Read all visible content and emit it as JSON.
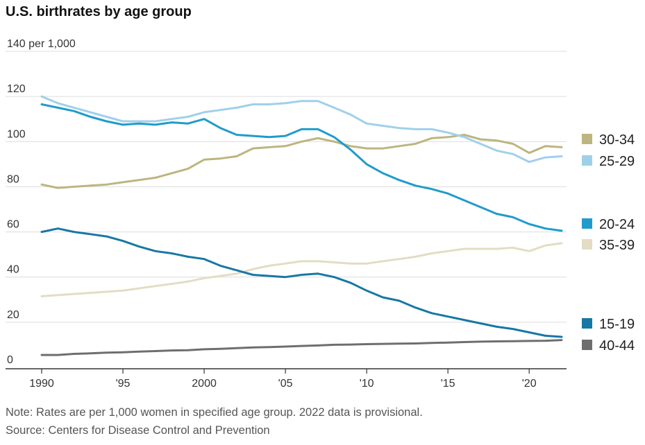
{
  "title": "U.S. birthrates by age group",
  "note": "Note: Rates are per 1,000 women in specified age group. 2022 data is provisional.",
  "source": "Source: Centers for Disease Control and Prevention",
  "chart_data": {
    "type": "line",
    "title": "U.S. birthrates by age group",
    "ylabel": "",
    "ylim": [
      0,
      140
    ],
    "xlim": [
      1990,
      2022
    ],
    "y_ticks": [
      0,
      20,
      40,
      60,
      80,
      100,
      120,
      140
    ],
    "y_tick_labels": [
      "0",
      "20",
      "40",
      "60",
      "80",
      "100",
      "120",
      "140 per 1,000"
    ],
    "x_ticks": [
      1990,
      1995,
      2000,
      2005,
      2010,
      2015,
      2020
    ],
    "x_tick_labels": [
      "1990",
      "'95",
      "2000",
      "'05",
      "'10",
      "'15",
      "'20"
    ],
    "grid": true,
    "legend_placement": "right, at line ends",
    "x": [
      1990,
      1991,
      1992,
      1993,
      1994,
      1995,
      1996,
      1997,
      1998,
      1999,
      2000,
      2001,
      2002,
      2003,
      2004,
      2005,
      2006,
      2007,
      2008,
      2009,
      2010,
      2011,
      2012,
      2013,
      2014,
      2015,
      2016,
      2017,
      2018,
      2019,
      2020,
      2021,
      2022
    ],
    "series": [
      {
        "name": "30-34",
        "color": "#bdb57e",
        "values": [
          81,
          79.5,
          80,
          80.5,
          81,
          82,
          83,
          84,
          86,
          88,
          92,
          92.5,
          93.5,
          97,
          97.5,
          98,
          100,
          101.5,
          100,
          98,
          97,
          97,
          98,
          99,
          101.5,
          102,
          103,
          101,
          100.5,
          99,
          95,
          98,
          97.5
        ]
      },
      {
        "name": "25-29",
        "color": "#9fd0ea",
        "values": [
          120,
          117,
          115,
          113,
          111,
          109,
          109,
          109,
          110,
          111,
          113,
          114,
          115,
          116.5,
          116.5,
          117,
          118,
          118,
          115,
          112,
          108,
          107,
          106,
          105.5,
          105.5,
          104,
          102,
          99,
          96,
          94.5,
          91,
          93,
          93.5
        ]
      },
      {
        "name": "20-24",
        "color": "#1f9bcc",
        "values": [
          116.5,
          115,
          113.5,
          111,
          109,
          107.5,
          108,
          107.5,
          108.5,
          108,
          110,
          106,
          103,
          102.5,
          102,
          102.5,
          105.5,
          105.5,
          102,
          96.5,
          90,
          86,
          83,
          80.5,
          79,
          77,
          74,
          71,
          68,
          66.5,
          63.5,
          61.5,
          60.5
        ]
      },
      {
        "name": "35-39",
        "color": "#e2ddc3",
        "values": [
          31.5,
          32,
          32.5,
          33,
          33.5,
          34,
          35,
          36,
          37,
          38,
          39.5,
          40.5,
          41.5,
          43.5,
          45,
          46,
          47,
          47,
          46.5,
          46,
          46,
          47,
          48,
          49,
          50.5,
          51.5,
          52.5,
          52.5,
          52.5,
          53,
          51.5,
          54,
          55
        ]
      },
      {
        "name": "15-19",
        "color": "#1777a5",
        "values": [
          60,
          61.5,
          60,
          59,
          58,
          56,
          53.5,
          51.5,
          50.5,
          49,
          48,
          45,
          43,
          41,
          40.5,
          40,
          41,
          41.5,
          40,
          37.5,
          34,
          31,
          29.5,
          26.5,
          24,
          22.5,
          21,
          19.5,
          18,
          17,
          15.5,
          14,
          13.5
        ]
      },
      {
        "name": "40-44",
        "color": "#6e6e6e",
        "values": [
          5.5,
          5.5,
          6,
          6.2,
          6.5,
          6.7,
          7,
          7.2,
          7.5,
          7.6,
          8,
          8.2,
          8.5,
          8.8,
          9,
          9.2,
          9.5,
          9.7,
          10,
          10.1,
          10.3,
          10.4,
          10.5,
          10.6,
          10.8,
          11,
          11.2,
          11.4,
          11.5,
          11.6,
          11.7,
          11.8,
          12.1
        ]
      }
    ]
  },
  "legend": [
    {
      "label": "30-34",
      "color": "#bdb57e"
    },
    {
      "label": "25-29",
      "color": "#9fd0ea"
    },
    {
      "label": "20-24",
      "color": "#1f9bcc"
    },
    {
      "label": "35-39",
      "color": "#e2ddc3"
    },
    {
      "label": "15-19",
      "color": "#1777a5"
    },
    {
      "label": "40-44",
      "color": "#6e6e6e"
    }
  ]
}
